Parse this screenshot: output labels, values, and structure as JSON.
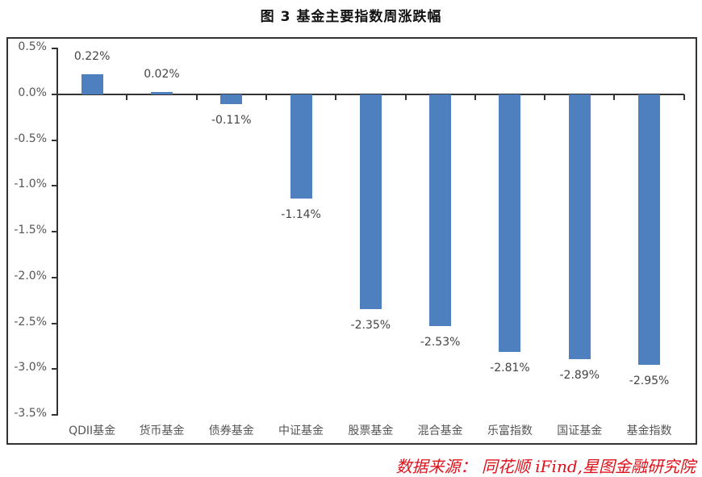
{
  "title": "图 3 基金主要指数周涨跌幅",
  "source": "数据来源： 同花顺 iFind,星图金融研究院",
  "colors": {
    "bar": "#4e7fbf",
    "source_text": "#e0101a",
    "axis": "#333333"
  },
  "yaxis": {
    "ticks": [
      "0.5%",
      "0.0%",
      "-0.5%",
      "-1.0%",
      "-1.5%",
      "-2.0%",
      "-2.5%",
      "-3.0%",
      "-3.5%"
    ]
  },
  "chart_data": {
    "type": "bar",
    "title": "图 3 基金主要指数周涨跌幅",
    "xlabel": "",
    "ylabel": "",
    "categories": [
      "QDII基金",
      "货币基金",
      "债券基金",
      "中证基金",
      "股票基金",
      "混合基金",
      "乐富指数",
      "国证基金",
      "基金指数"
    ],
    "values": [
      0.22,
      0.02,
      -0.11,
      -1.14,
      -2.35,
      -2.53,
      -2.81,
      -2.89,
      -2.95
    ],
    "value_labels": [
      "0.22%",
      "0.02%",
      "-0.11%",
      "-1.14%",
      "-2.35%",
      "-2.53%",
      "-2.81%",
      "-2.89%",
      "-2.95%"
    ],
    "unit": "%",
    "ylim": [
      -3.5,
      0.5
    ],
    "ytick_step": 0.5,
    "grid": false,
    "legend": null,
    "source": "数据来源： 同花顺 iFind,星图金融研究院"
  }
}
